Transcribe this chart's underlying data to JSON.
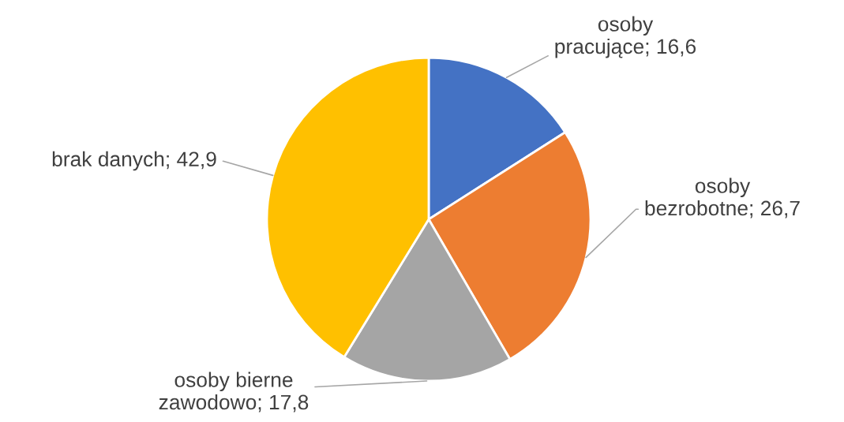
{
  "chart_data": {
    "type": "pie",
    "categories": [
      "osoby pracujące",
      "osoby bezrobotne",
      "osoby bierne zawodowo",
      "brak danych"
    ],
    "values": [
      16.6,
      26.7,
      17.8,
      42.9
    ],
    "colors": [
      "#4472c4",
      "#ed7d31",
      "#a5a5a5",
      "#ffc000"
    ],
    "value_labels": [
      "16,6",
      "26,7",
      "17,8",
      "42,9"
    ]
  }
}
